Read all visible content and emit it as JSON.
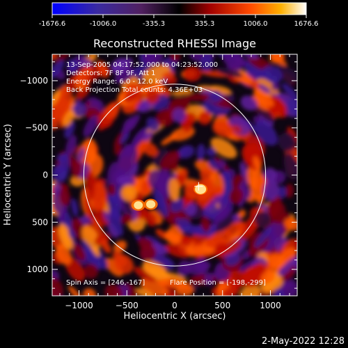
{
  "colorbar": {
    "tick_labels": [
      "-1676.6",
      "-1006.0",
      "-335.3",
      "335.3",
      "1006.0",
      "1676.6"
    ],
    "range": [
      -1676.6,
      1676.6
    ],
    "colormap": [
      "#0000ff",
      "#3020c0",
      "#602070",
      "#000000",
      "#a00000",
      "#ff4000",
      "#ffa000",
      "#ffffff"
    ]
  },
  "chart_data": {
    "type": "heatmap",
    "title": "Reconstructed RHESSI Image",
    "xlabel": "Heliocentric X (arcsec)",
    "ylabel": "Heliocentric Y (arcsec)",
    "xlim": [
      -1280,
      1280
    ],
    "ylim": [
      -1280,
      1280
    ],
    "x_ticks": [
      -1000,
      -500,
      0,
      500,
      1000
    ],
    "y_ticks": [
      -1000,
      -500,
      0,
      500,
      1000
    ],
    "x_tick_labels": [
      "−1000",
      "−500",
      "0",
      "500",
      "1000"
    ],
    "y_tick_labels": [
      "1000",
      "500",
      "0",
      "−500",
      "−1000"
    ],
    "annotations": [
      "13-Sep-2005 04:17:52.000 to 04:23:52.000",
      "Detectors: 7F 8F 9F, Att 1",
      "Energy Range: 6.0 - 12.0 keV",
      "Back Projection    Total counts: 4.36E+03"
    ],
    "footer_left": "Spin Axis = [246,-167]",
    "footer_right": "Flare Position = [-198,-299]",
    "solar_limb_radius": 950,
    "marker_position": [
      250,
      -120
    ],
    "bright_sources": [
      {
        "x": 270,
        "y": -150,
        "intensity": 1676.6
      },
      {
        "x": -250,
        "y": -310,
        "intensity": 1300
      },
      {
        "x": -380,
        "y": -320,
        "intensity": 1250
      }
    ]
  },
  "timestamp": "2-May-2022 12:28"
}
